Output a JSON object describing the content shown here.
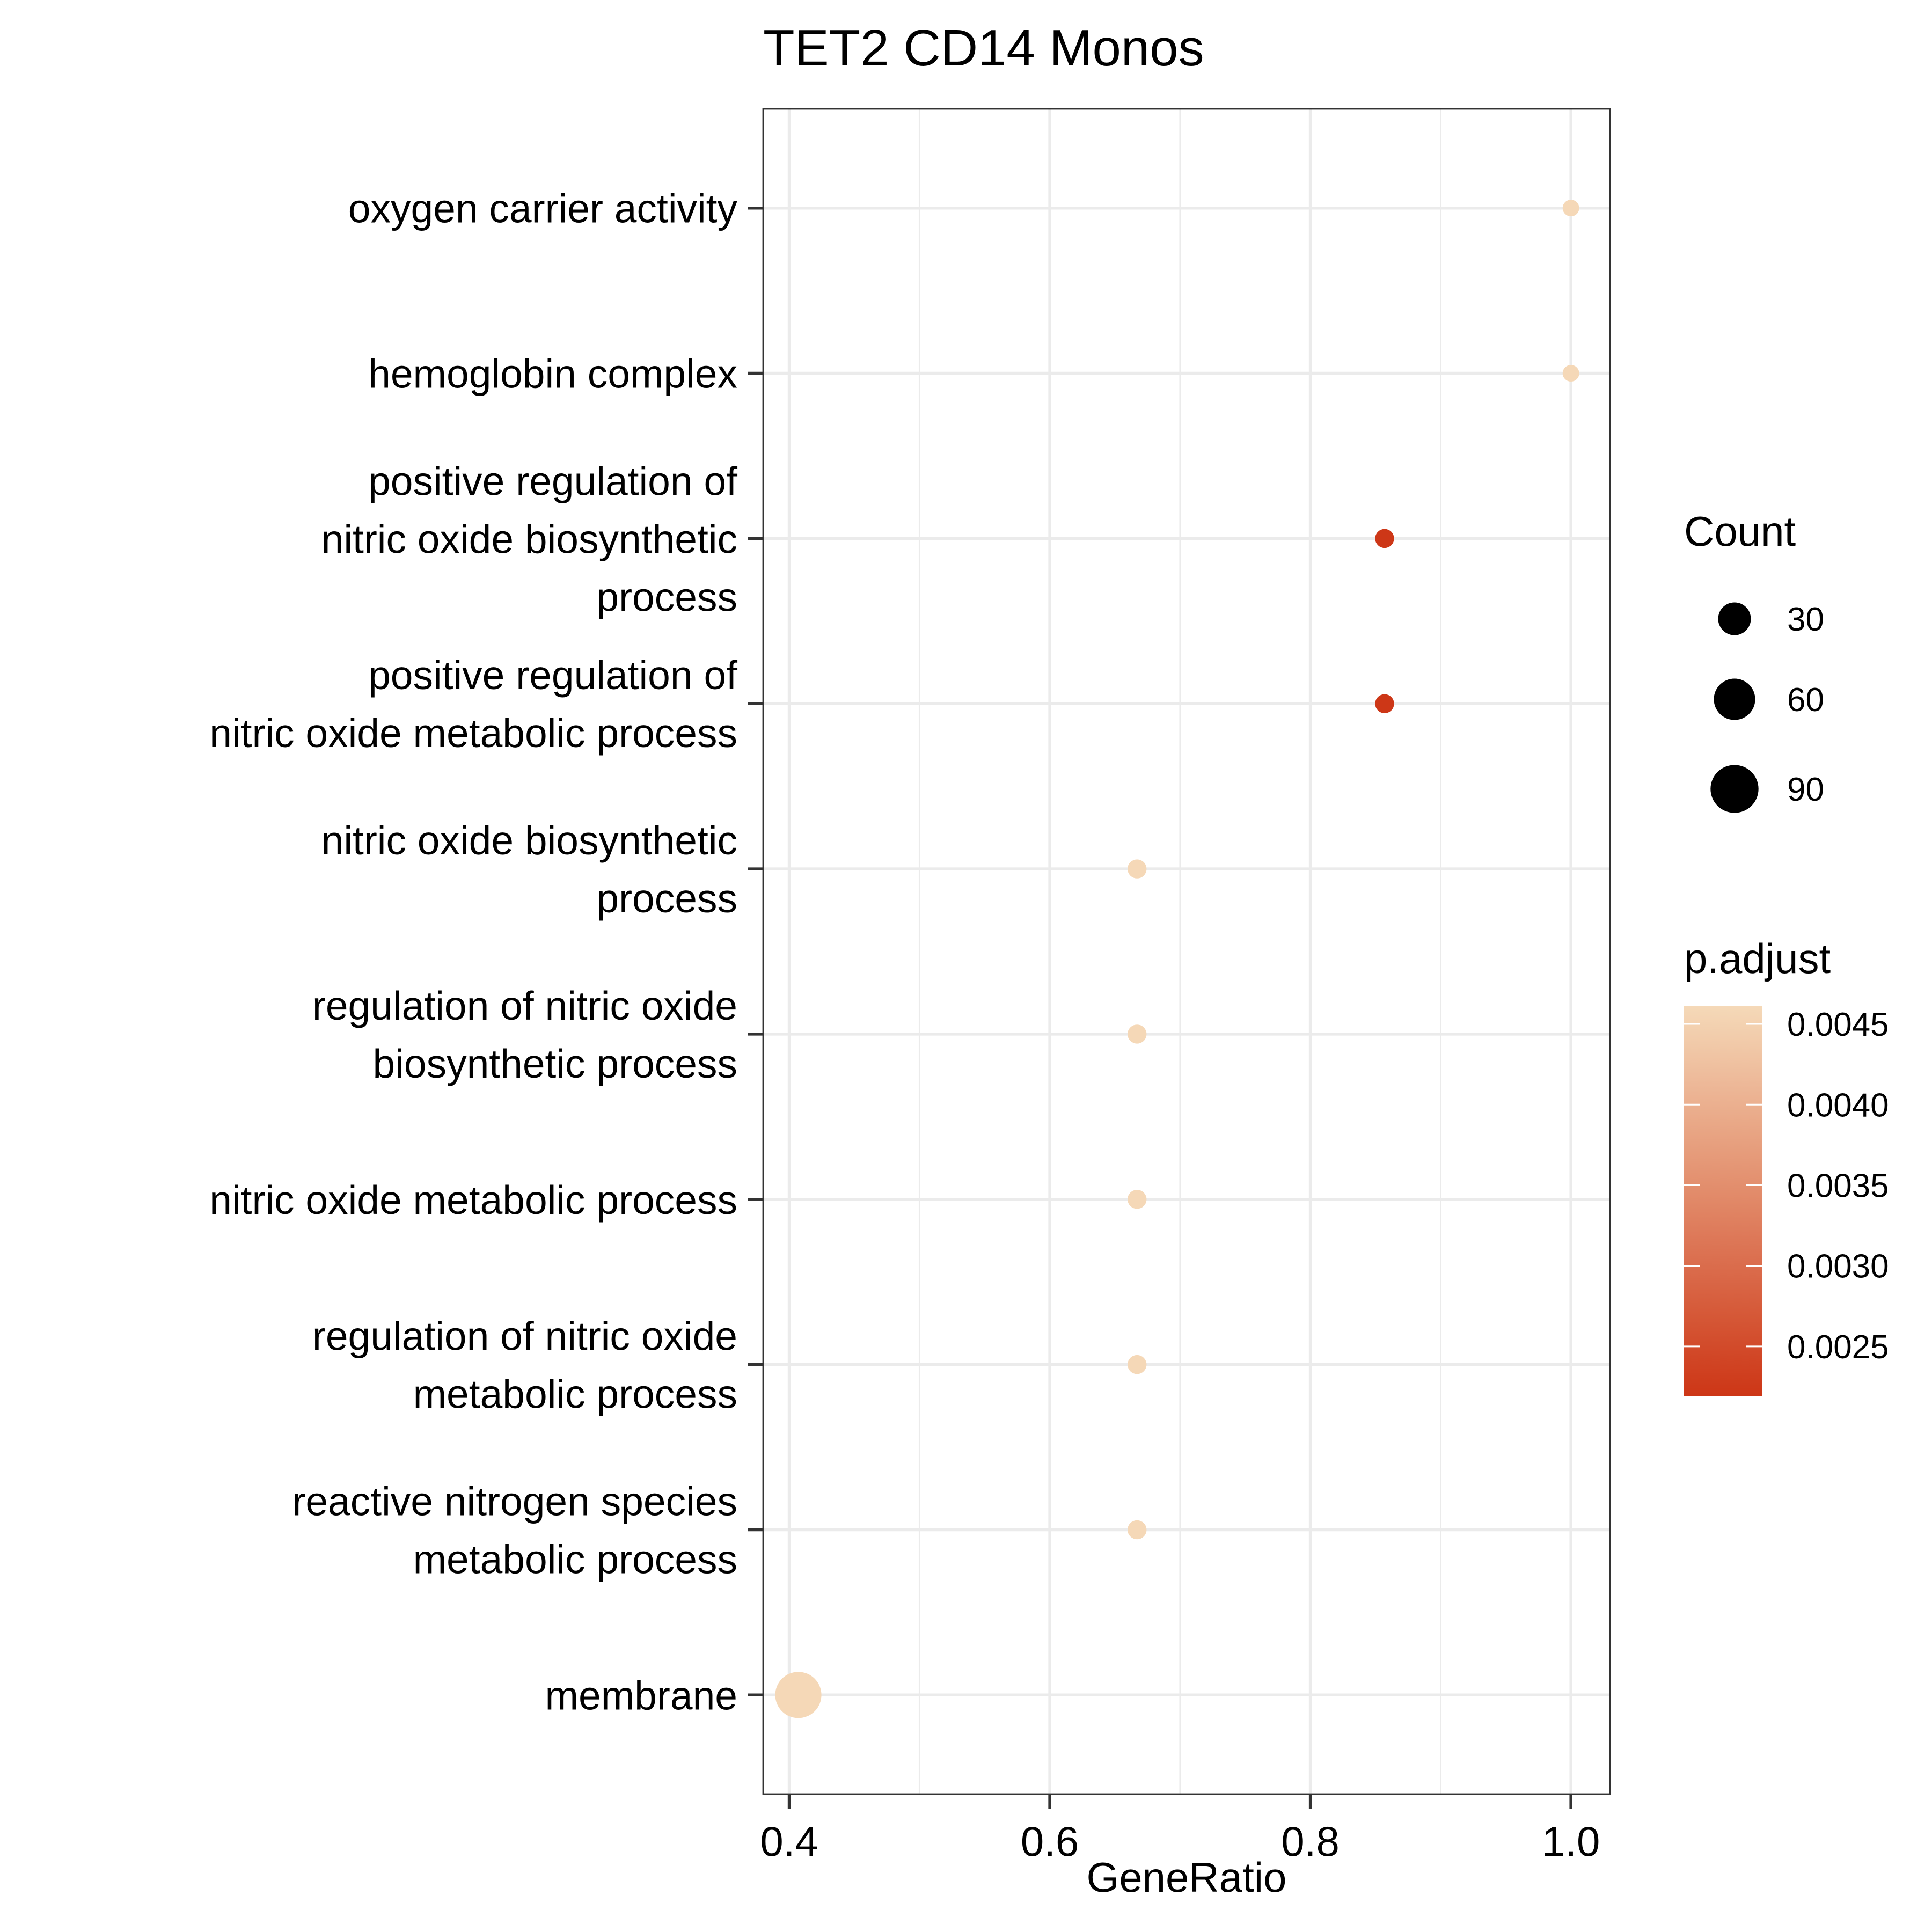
{
  "chart_data": {
    "type": "scatter",
    "title": "TET2 CD14 Monos",
    "xlabel": "GeneRatio",
    "ylabel": "",
    "xlim": [
      0.38,
      1.03
    ],
    "x_ticks": [
      "0.4",
      "0.6",
      "0.8",
      "1.0"
    ],
    "x_tick_values": [
      0.4,
      0.6,
      0.8,
      1.0
    ],
    "grid": true,
    "categories": [
      [
        "oxygen carrier activity"
      ],
      [
        "hemoglobin complex"
      ],
      [
        "positive regulation of",
        "nitric oxide biosynthetic",
        "process"
      ],
      [
        "positive regulation of",
        "nitric oxide metabolic process"
      ],
      [
        "nitric oxide biosynthetic",
        "process"
      ],
      [
        "regulation of nitric oxide",
        "biosynthetic process"
      ],
      [
        "nitric oxide metabolic process"
      ],
      [
        "regulation of nitric oxide",
        "metabolic process"
      ],
      [
        "reactive nitrogen species",
        "metabolic process"
      ],
      [
        "membrane"
      ]
    ],
    "points": [
      {
        "gene_ratio": 1.0,
        "count": 3,
        "p_adjust": 0.0046
      },
      {
        "gene_ratio": 1.0,
        "count": 3,
        "p_adjust": 0.0046
      },
      {
        "gene_ratio": 0.857,
        "count": 6,
        "p_adjust": 0.0022
      },
      {
        "gene_ratio": 0.857,
        "count": 6,
        "p_adjust": 0.0022
      },
      {
        "gene_ratio": 0.667,
        "count": 6,
        "p_adjust": 0.0046
      },
      {
        "gene_ratio": 0.667,
        "count": 6,
        "p_adjust": 0.0046
      },
      {
        "gene_ratio": 0.667,
        "count": 6,
        "p_adjust": 0.0046
      },
      {
        "gene_ratio": 0.667,
        "count": 6,
        "p_adjust": 0.0046
      },
      {
        "gene_ratio": 0.667,
        "count": 6,
        "p_adjust": 0.0046
      },
      {
        "gene_ratio": 0.407,
        "count": 110,
        "p_adjust": 0.0046
      }
    ],
    "size_legend": {
      "title": "Count",
      "breaks": [
        30,
        60,
        90
      ],
      "labels": [
        "30",
        "60",
        "90"
      ]
    },
    "color_legend": {
      "title": "p.adjust",
      "breaks": [
        0.0045,
        0.004,
        0.0035,
        0.003,
        0.0025
      ],
      "labels": [
        "0.0045",
        "0.0040",
        "0.0035",
        "0.0030",
        "0.0025"
      ],
      "range": [
        0.00219,
        0.00461
      ],
      "low_color": "#cd3616",
      "high_color": "#f5d9b8"
    },
    "legend_position": "right"
  }
}
